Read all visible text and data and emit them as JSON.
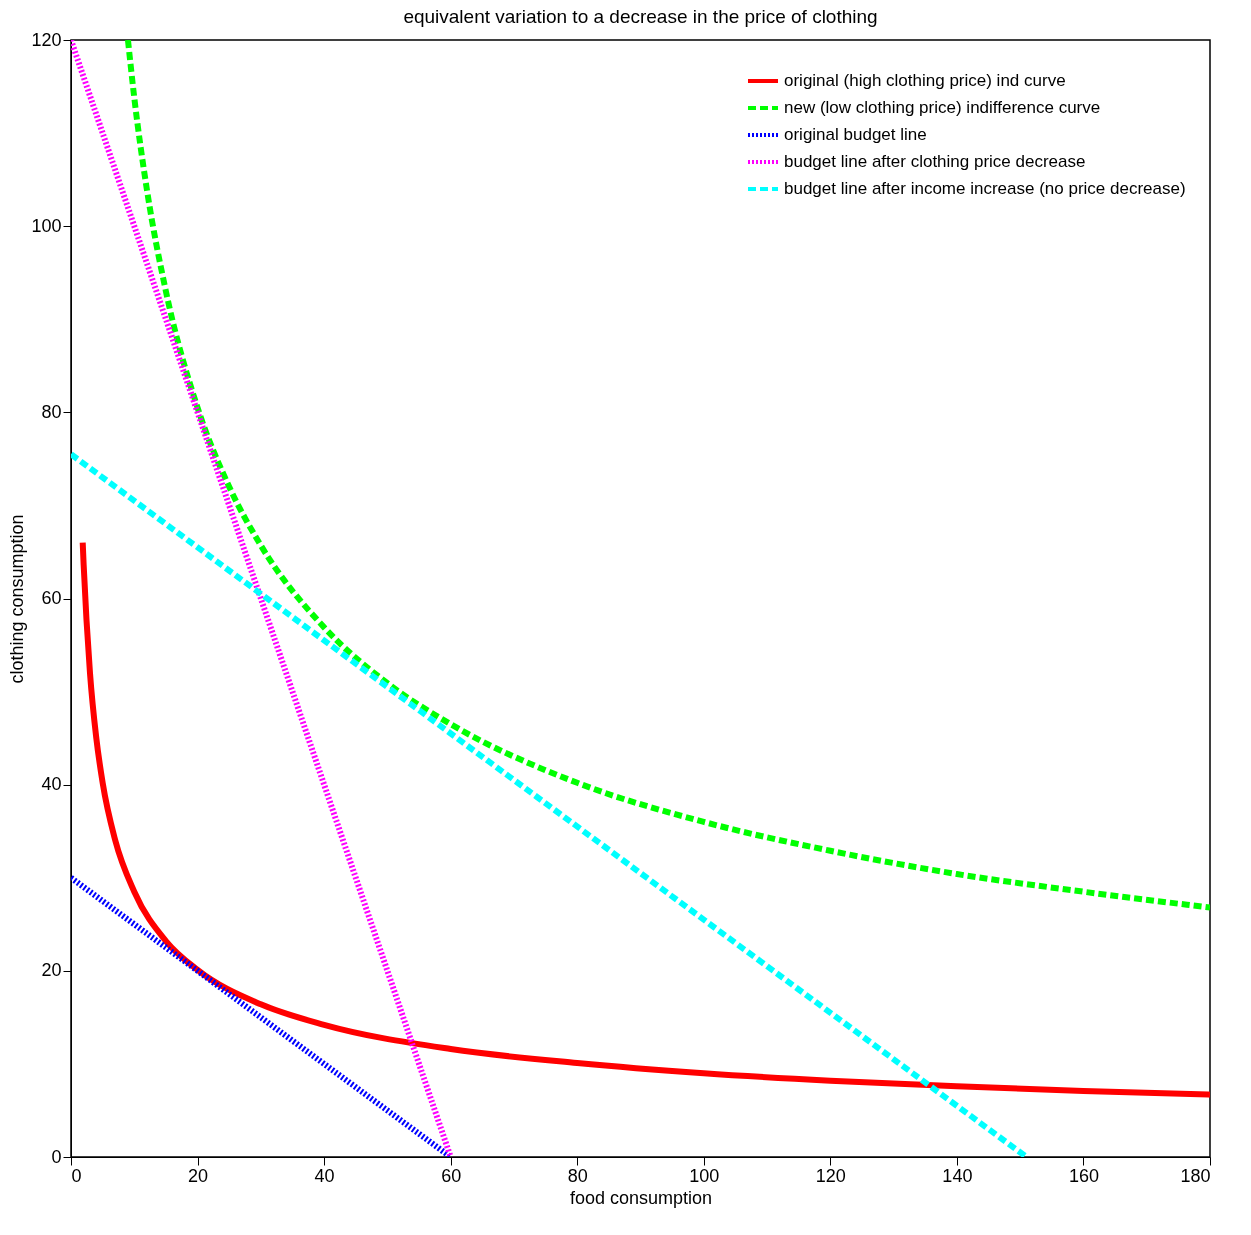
{
  "chart_data": {
    "type": "line",
    "title": "equivalent variation to a decrease in the price of clothing",
    "xlabel": "food consumption",
    "ylabel": "clothing consumption",
    "xlim": [
      0,
      180
    ],
    "xticks": [
      0,
      20,
      40,
      60,
      80,
      100,
      120,
      140,
      160,
      180
    ],
    "ylim": [
      0,
      120
    ],
    "yticks": [
      0,
      20,
      40,
      60,
      80,
      100,
      120
    ],
    "grid": false,
    "legend": "top right",
    "marker": "none",
    "series": [
      {
        "name": "original (high clothing price) ind curve",
        "color": "#ff0000",
        "line_style": "solid",
        "x": [
          1.85,
          2,
          3,
          4,
          5,
          7,
          10,
          15,
          20,
          30,
          40,
          60,
          80,
          100,
          120,
          140,
          160,
          180
        ],
        "values": [
          66,
          63.6,
          52,
          45,
          40.2,
          34,
          28.5,
          23.2,
          20.1,
          16.4,
          14.2,
          11.6,
          10.1,
          9,
          8.2,
          7.6,
          7.1,
          6.7
        ]
      },
      {
        "name": "new (low clothing price) indifference curve",
        "color": "#00ff00",
        "line_style": "dashed",
        "x": [
          9,
          10,
          12,
          15,
          20,
          25,
          30,
          40,
          50,
          60,
          80,
          100,
          120,
          140,
          160,
          180
        ],
        "values": [
          120,
          113.8,
          103.9,
          93,
          80.5,
          72,
          65.7,
          56.9,
          50.9,
          46.5,
          40.2,
          36,
          32.9,
          30.4,
          28.5,
          26.8
        ]
      },
      {
        "name": "original budget line",
        "color": "#0000ff",
        "line_style": "dotted",
        "x": [
          0,
          60
        ],
        "values": [
          30,
          0
        ]
      },
      {
        "name": "budget line after clothing price decrease",
        "color": "#ff00ff",
        "line_style": "dotted",
        "x": [
          0,
          60
        ],
        "values": [
          120,
          0
        ]
      },
      {
        "name": "budget line after income increase (no price decrease)",
        "color": "#00ffff",
        "line_style": "dashed",
        "x": [
          0,
          151
        ],
        "values": [
          75.5,
          0
        ]
      }
    ]
  }
}
